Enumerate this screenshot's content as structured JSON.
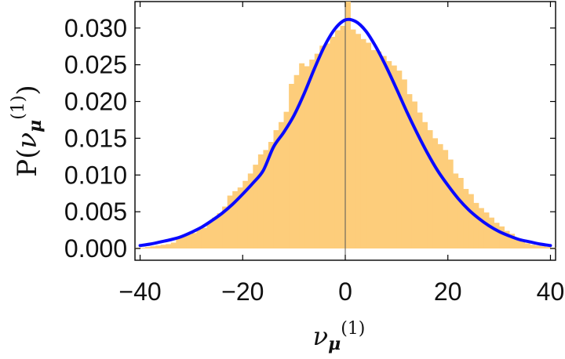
{
  "chart_data": {
    "type": "bar",
    "subtype": "histogram-with-fit-curve",
    "ylabel": "P(ν_μ^(1))",
    "ylabel_parts": {
      "main": "P(",
      "symbol": "ν",
      "sub": "μ",
      "sup": "(1)",
      "close": ")"
    },
    "xlabel": "ν_μ^(1)",
    "xlabel_parts": {
      "symbol": "ν",
      "sub": "μ",
      "sup": "(1)"
    },
    "xlim": [
      -41,
      41
    ],
    "ylim": [
      -0.0016,
      0.0336
    ],
    "x_ticks": [
      {
        "value": -40,
        "label": "−40"
      },
      {
        "value": -20,
        "label": "−20"
      },
      {
        "value": 0,
        "label": "0"
      },
      {
        "value": 20,
        "label": "20"
      },
      {
        "value": 40,
        "label": "40"
      }
    ],
    "y_ticks": [
      {
        "value": 0.0,
        "label": "0.000"
      },
      {
        "value": 0.005,
        "label": "0.005"
      },
      {
        "value": 0.01,
        "label": "0.010"
      },
      {
        "value": 0.015,
        "label": "0.015"
      },
      {
        "value": 0.02,
        "label": "0.020"
      },
      {
        "value": 0.025,
        "label": "0.025"
      },
      {
        "value": 0.03,
        "label": "0.030"
      }
    ],
    "histogram": {
      "color": "#fdcd7b",
      "bin_width": 1,
      "bins_start": [
        -41,
        -40,
        -39,
        -38,
        -37,
        -36,
        -35,
        -34,
        -33,
        -32,
        -31,
        -30,
        -29,
        -28,
        -27,
        -26,
        -25,
        -24,
        -23,
        -22,
        -21,
        -20,
        -19,
        -18,
        -17,
        -16,
        -15,
        -14,
        -13,
        -12,
        -11,
        -10,
        -9,
        -8,
        -7,
        -6,
        -5,
        -4,
        -3,
        -2,
        -1,
        0,
        1,
        2,
        3,
        4,
        5,
        6,
        7,
        8,
        9,
        10,
        11,
        12,
        13,
        14,
        15,
        16,
        17,
        18,
        19,
        20,
        21,
        22,
        23,
        24,
        25,
        26,
        27,
        28,
        29,
        30,
        31,
        32,
        33,
        34,
        35,
        36,
        37,
        38,
        39,
        40
      ],
      "values": [
        0.0001,
        0.0001,
        0.0002,
        0.0003,
        0.0004,
        0.0005,
        0.0006,
        0.0008,
        0.0016,
        0.0017,
        0.0019,
        0.0021,
        0.0026,
        0.0028,
        0.0036,
        0.0042,
        0.0048,
        0.0057,
        0.0072,
        0.0078,
        0.0083,
        0.0092,
        0.0102,
        0.0114,
        0.0128,
        0.0134,
        0.0145,
        0.0161,
        0.0172,
        0.0186,
        0.0224,
        0.0236,
        0.0252,
        0.0248,
        0.0257,
        0.0265,
        0.0276,
        0.0279,
        0.0288,
        0.0297,
        0.0303,
        0.0336,
        0.0298,
        0.0292,
        0.0285,
        0.028,
        0.027,
        0.0268,
        0.0262,
        0.0255,
        0.0249,
        0.0242,
        0.023,
        0.021,
        0.02,
        0.0185,
        0.0172,
        0.0161,
        0.015,
        0.0142,
        0.0134,
        0.0121,
        0.0102,
        0.0096,
        0.0081,
        0.0074,
        0.0062,
        0.0055,
        0.0049,
        0.0042,
        0.0035,
        0.003,
        0.0024,
        0.002,
        0.0012,
        0.001,
        0.0007,
        0.0005,
        0.0004,
        0.0003,
        0.0002,
        0.0001
      ]
    },
    "fit_curve": {
      "type": "line",
      "color": "#0a0aff",
      "x": [
        -40,
        -38,
        -36,
        -34,
        -32,
        -30,
        -28,
        -26,
        -24,
        -22,
        -20,
        -18,
        -16,
        -14,
        -12,
        -10,
        -8,
        -6,
        -4,
        -2,
        0,
        2,
        4,
        6,
        8,
        10,
        12,
        14,
        16,
        18,
        20,
        22,
        24,
        26,
        28,
        30,
        32,
        34,
        36,
        38,
        40
      ],
      "y": [
        0.0004,
        0.0006,
        0.0009,
        0.0012,
        0.0016,
        0.0022,
        0.0029,
        0.0038,
        0.0048,
        0.006,
        0.0074,
        0.0089,
        0.0106,
        0.0138,
        0.0158,
        0.0181,
        0.0211,
        0.0245,
        0.0276,
        0.0299,
        0.0311,
        0.0309,
        0.0296,
        0.0274,
        0.0247,
        0.0217,
        0.0186,
        0.0157,
        0.013,
        0.0106,
        0.0086,
        0.0068,
        0.0053,
        0.0041,
        0.0031,
        0.0023,
        0.0017,
        0.0012,
        0.0009,
        0.0006,
        0.0004
      ]
    },
    "center_line": {
      "x": 0,
      "color": "#555555"
    },
    "grid": false,
    "legend": "none"
  }
}
